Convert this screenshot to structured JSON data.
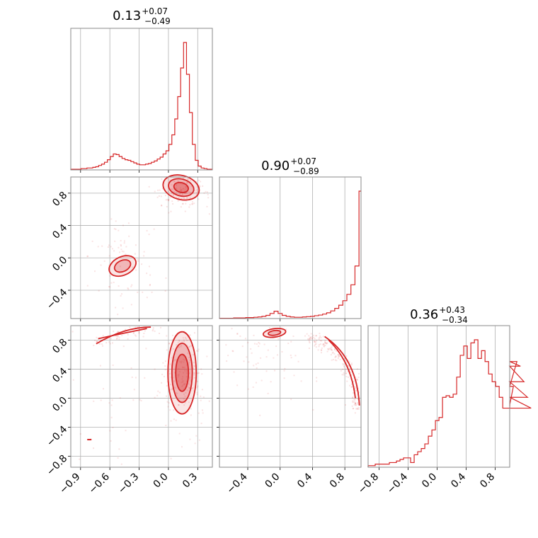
{
  "colors": {
    "line": "#d62728",
    "grid": "#b0b0b0",
    "frame": "#8a8a8a"
  },
  "chart_data": {
    "type": "corner",
    "parameters": 3,
    "titles": [
      {
        "value": "0.13",
        "plus": "+0.07",
        "minus": "−0.49"
      },
      {
        "value": "0.90",
        "plus": "+0.07",
        "minus": "−0.89"
      },
      {
        "value": "0.36",
        "plus": "+0.43",
        "minus": "−0.34"
      }
    ],
    "axes": [
      {
        "range": [
          -1.0,
          0.45
        ],
        "ticks": [
          -0.9,
          -0.6,
          -0.3,
          0.0,
          0.3
        ],
        "tick_labels": [
          "−0.9",
          "−0.6",
          "−0.3",
          "0.0",
          "0.3"
        ]
      },
      {
        "range": [
          -0.75,
          1.0
        ],
        "ticks": [
          -0.4,
          0.0,
          0.4,
          0.8
        ],
        "tick_labels": [
          "−0.4",
          "0.0",
          "0.4",
          "0.8"
        ]
      },
      {
        "range": [
          -0.95,
          1.0
        ],
        "ticks": [
          -0.8,
          -0.4,
          0.0,
          0.4,
          0.8
        ],
        "tick_labels": [
          "−0.8",
          "−0.4",
          "0.0",
          "0.4",
          "0.8"
        ]
      }
    ],
    "histograms": [
      {
        "param": 0,
        "bin_width": 0.03,
        "centers": [
          -1.0,
          -0.97,
          -0.94,
          -0.91,
          -0.88,
          -0.85,
          -0.82,
          -0.79,
          -0.76,
          -0.73,
          -0.7,
          -0.67,
          -0.64,
          -0.61,
          -0.58,
          -0.55,
          -0.52,
          -0.49,
          -0.46,
          -0.43,
          -0.4,
          -0.37,
          -0.34,
          -0.31,
          -0.28,
          -0.25,
          -0.22,
          -0.19,
          -0.16,
          -0.13,
          -0.1,
          -0.07,
          -0.04,
          -0.01,
          0.02,
          0.05,
          0.08,
          0.11,
          0.14,
          0.17,
          0.2,
          0.23,
          0.26,
          0.29,
          0.32,
          0.35,
          0.38,
          0.41,
          0.44
        ],
        "counts": [
          1,
          1,
          1,
          1,
          2,
          2,
          3,
          3,
          4,
          5,
          7,
          9,
          12,
          16,
          21,
          25,
          24,
          21,
          18,
          16,
          15,
          13,
          11,
          9,
          8,
          8,
          9,
          10,
          12,
          14,
          17,
          20,
          25,
          30,
          40,
          55,
          80,
          115,
          160,
          200,
          150,
          90,
          40,
          15,
          6,
          3,
          2,
          1,
          1
        ]
      },
      {
        "param": 1,
        "bin_width": 0.05,
        "centers": [
          -0.75,
          -0.7,
          -0.65,
          -0.6,
          -0.55,
          -0.5,
          -0.45,
          -0.4,
          -0.35,
          -0.3,
          -0.25,
          -0.2,
          -0.15,
          -0.1,
          -0.05,
          0.0,
          0.05,
          0.1,
          0.15,
          0.2,
          0.25,
          0.3,
          0.35,
          0.4,
          0.45,
          0.5,
          0.55,
          0.6,
          0.65,
          0.7,
          0.75,
          0.8,
          0.85,
          0.9,
          0.95,
          1.0
        ],
        "counts": [
          1,
          1,
          1,
          1,
          2,
          2,
          2,
          3,
          3,
          4,
          5,
          7,
          10,
          16,
          23,
          16,
          10,
          7,
          5,
          4,
          4,
          5,
          6,
          7,
          9,
          11,
          14,
          18,
          24,
          32,
          42,
          56,
          76,
          106,
          165,
          400
        ]
      },
      {
        "param": 2,
        "bin_width": 0.0488,
        "counts": [
          1,
          1,
          2,
          2,
          2,
          2,
          3,
          3,
          4,
          5,
          6,
          6,
          3,
          8,
          10,
          12,
          15,
          20,
          24,
          30,
          32,
          45,
          46,
          45,
          47,
          58,
          72,
          78,
          70,
          80,
          82,
          70,
          75,
          68,
          60,
          55,
          52,
          45,
          38,
          38,
          40,
          52,
          68,
          65,
          55,
          45,
          38
        ]
      }
    ],
    "pairs": [
      {
        "x": 0,
        "y": 1
      },
      {
        "x": 0,
        "y": 2
      },
      {
        "x": 1,
        "y": 2
      }
    ]
  }
}
